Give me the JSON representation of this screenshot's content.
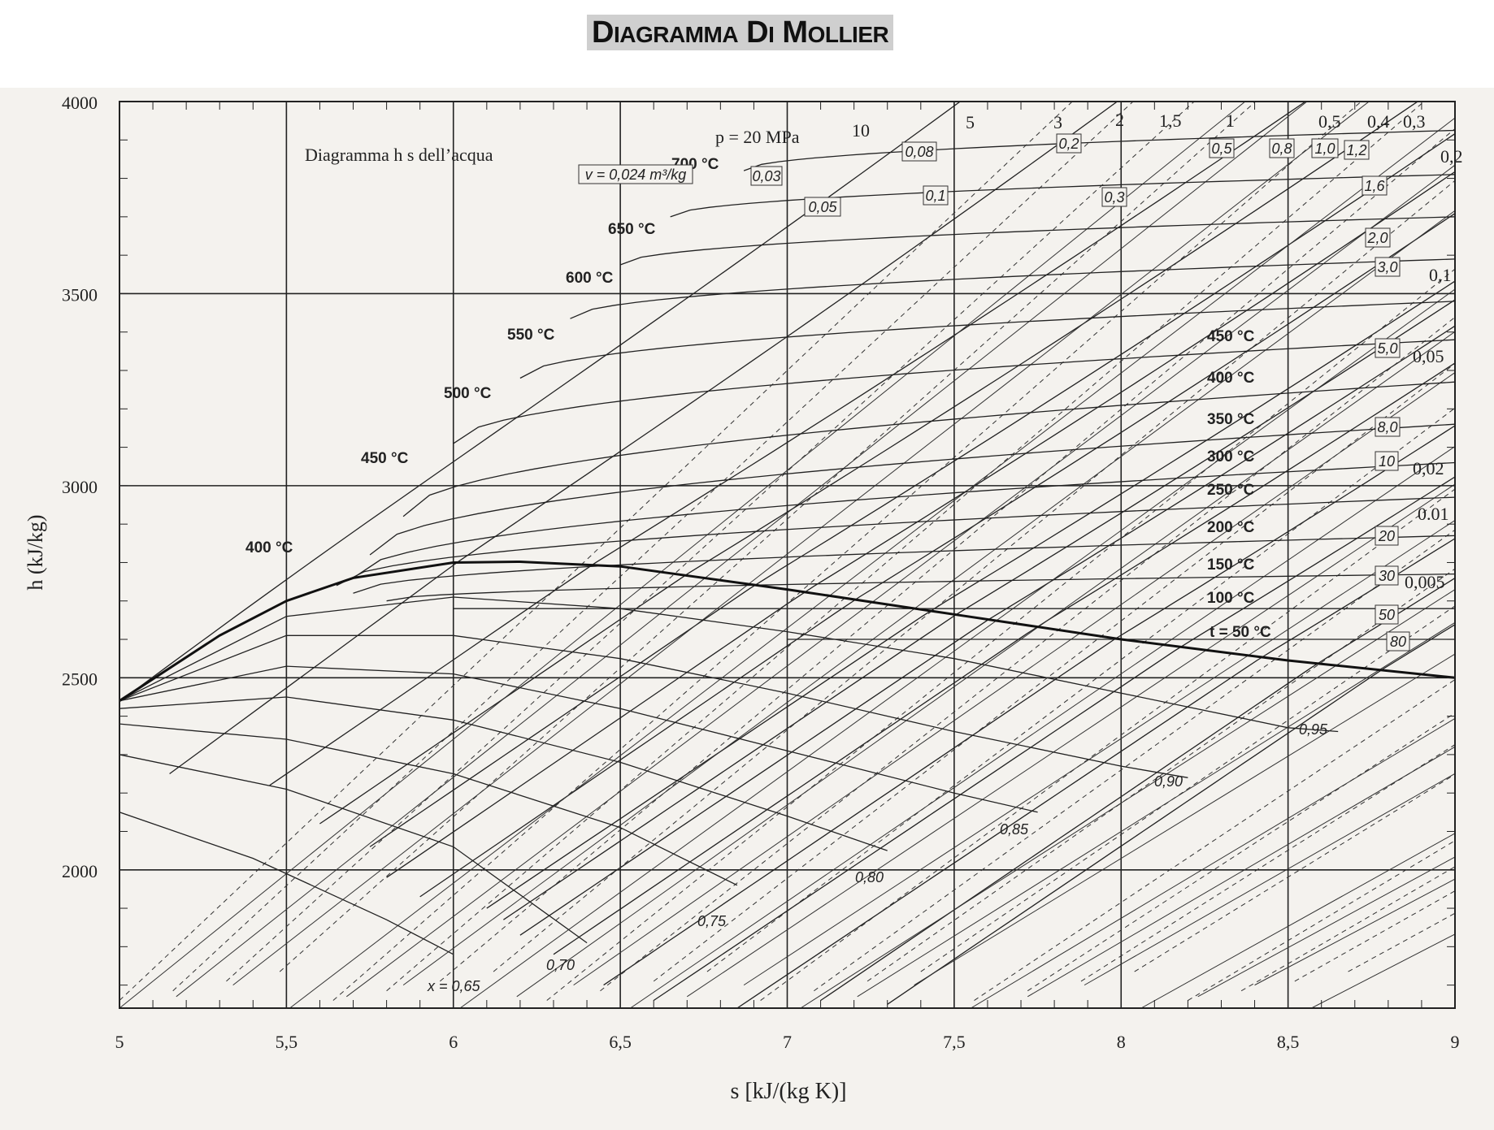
{
  "title": "DIAGRAMMA DI MOLLIER",
  "chart_data": {
    "type": "line",
    "subtitle": "Diagramma h s dell’acqua",
    "xlabel": "s  [kJ/(kg K)]",
    "ylabel": "h  (kJ/kg)",
    "xlim": [
      5,
      9
    ],
    "ylim": [
      1640,
      4000
    ],
    "x_ticks": [
      "5",
      "5,5",
      "6",
      "6,5",
      "7",
      "7,5",
      "8",
      "8,5",
      "9"
    ],
    "y_ticks": [
      "4000",
      "3500",
      "3000",
      "2500",
      "2000"
    ],
    "grid": true,
    "saturation_line": [
      [
        5.0,
        2440
      ],
      [
        5.3,
        2610
      ],
      [
        5.5,
        2700
      ],
      [
        5.7,
        2760
      ],
      [
        6.0,
        2800
      ],
      [
        6.2,
        2802
      ],
      [
        6.5,
        2790
      ],
      [
        7.0,
        2730
      ],
      [
        7.5,
        2665
      ],
      [
        8.0,
        2600
      ],
      [
        8.5,
        2545
      ],
      [
        9.0,
        2500
      ]
    ],
    "isobars": [
      {
        "label": "p = 20 MPa",
        "s": [
          5.05,
          9.0
        ],
        "h": [
          2470,
          5020
        ]
      },
      {
        "label": "10",
        "s": [
          5.15,
          9.0
        ],
        "h": [
          2250,
          4710
        ]
      },
      {
        "label": "5",
        "s": [
          5.45,
          9.0
        ],
        "h": [
          2220,
          4330
        ]
      },
      {
        "label": "3",
        "s": [
          5.6,
          9.0
        ],
        "h": [
          2120,
          4130
        ]
      },
      {
        "label": "2",
        "s": [
          5.75,
          9.0
        ],
        "h": [
          2060,
          3980
        ]
      },
      {
        "label": "1,5",
        "s": [
          5.8,
          9.0
        ],
        "h": [
          1980,
          3880
        ]
      },
      {
        "label": "1",
        "s": [
          5.9,
          9.0
        ],
        "h": [
          1930,
          3770
        ]
      },
      {
        "label": "0,5",
        "s": [
          6.1,
          9.0
        ],
        "h": [
          1900,
          3590
        ]
      },
      {
        "label": "0,4",
        "s": [
          6.15,
          9.0
        ],
        "h": [
          1870,
          3540
        ]
      },
      {
        "label": "0,3",
        "s": [
          6.2,
          9.0
        ],
        "h": [
          1830,
          3470
        ]
      },
      {
        "label": "0,2",
        "s": [
          6.3,
          9.0
        ],
        "h": [
          1780,
          3370
        ]
      },
      {
        "label": "0,1",
        "s": [
          6.45,
          9.0
        ],
        "h": [
          1700,
          3200
        ]
      },
      {
        "label": "0,05",
        "s": [
          6.6,
          9.0
        ],
        "h": [
          1660,
          3060
        ]
      },
      {
        "label": "0,02",
        "s": [
          6.85,
          9.0
        ],
        "h": [
          1640,
          2890
        ]
      },
      {
        "label": "0.01",
        "s": [
          7.1,
          9.0
        ],
        "h": [
          1660,
          2780
        ]
      },
      {
        "label": "0,005",
        "s": [
          7.3,
          9.0
        ],
        "h": [
          1650,
          2650
        ]
      }
    ],
    "isotherms": [
      {
        "label": "700 °C",
        "s": [
          6.87,
          9.0
        ],
        "h": [
          3820,
          3925
        ]
      },
      {
        "label": "650 °C",
        "s": [
          6.65,
          9.0
        ],
        "h": [
          3700,
          3810
        ]
      },
      {
        "label": "600 °C",
        "s": [
          6.5,
          9.0
        ],
        "h": [
          3575,
          3700
        ]
      },
      {
        "label": "550 °C",
        "s": [
          6.35,
          9.0
        ],
        "h": [
          3435,
          3590
        ]
      },
      {
        "label": "500 °C",
        "s": [
          6.2,
          9.0
        ],
        "h": [
          3280,
          3480
        ]
      },
      {
        "label": "450 °C",
        "s": [
          6.0,
          9.0
        ],
        "h": [
          3110,
          3380
        ]
      },
      {
        "label": "400 °C",
        "s": [
          5.85,
          9.0
        ],
        "h": [
          2920,
          3270
        ]
      },
      {
        "label": "350 °C",
        "s": [
          5.75,
          9.0
        ],
        "h": [
          2820,
          3160
        ]
      },
      {
        "label": "300 °C",
        "s": [
          5.7,
          9.0
        ],
        "h": [
          2760,
          3060
        ]
      },
      {
        "label": "250 °C",
        "s": [
          5.65,
          9.0
        ],
        "h": [
          2740,
          2970
        ]
      },
      {
        "label": "200 °C",
        "s": [
          5.7,
          9.0
        ],
        "h": [
          2720,
          2870
        ]
      },
      {
        "label": "150 °C",
        "s": [
          5.8,
          9.0
        ],
        "h": [
          2700,
          2770
        ]
      },
      {
        "label": "100 °C",
        "s": [
          6.0,
          9.0
        ],
        "h": [
          2680,
          2680
        ]
      },
      {
        "label": "t = 50 °C",
        "s": [
          7.0,
          9.0
        ],
        "h": [
          2600,
          2600
        ]
      }
    ],
    "quality_lines": [
      {
        "label": "0,95",
        "points": [
          [
            5.0,
            2440
          ],
          [
            5.5,
            2660
          ],
          [
            6.0,
            2710
          ],
          [
            6.5,
            2680
          ],
          [
            7.0,
            2620
          ],
          [
            7.5,
            2550
          ],
          [
            8.0,
            2460
          ],
          [
            8.5,
            2370
          ],
          [
            8.65,
            2360
          ]
        ]
      },
      {
        "label": "0,90",
        "points": [
          [
            5.0,
            2440
          ],
          [
            5.5,
            2610
          ],
          [
            6.0,
            2610
          ],
          [
            6.5,
            2550
          ],
          [
            7.0,
            2460
          ],
          [
            7.5,
            2360
          ],
          [
            8.0,
            2270
          ],
          [
            8.2,
            2240
          ]
        ]
      },
      {
        "label": "0,85",
        "points": [
          [
            5.0,
            2440
          ],
          [
            5.5,
            2530
          ],
          [
            6.0,
            2510
          ],
          [
            6.5,
            2420
          ],
          [
            7.0,
            2310
          ],
          [
            7.5,
            2200
          ],
          [
            7.75,
            2150
          ]
        ]
      },
      {
        "label": "0,80",
        "points": [
          [
            5.0,
            2420
          ],
          [
            5.5,
            2450
          ],
          [
            6.0,
            2390
          ],
          [
            6.5,
            2280
          ],
          [
            7.0,
            2140
          ],
          [
            7.3,
            2050
          ]
        ]
      },
      {
        "label": "0,75",
        "points": [
          [
            5.0,
            2380
          ],
          [
            5.5,
            2340
          ],
          [
            6.0,
            2250
          ],
          [
            6.5,
            2110
          ],
          [
            6.85,
            1960
          ]
        ]
      },
      {
        "label": "0,70",
        "points": [
          [
            5.0,
            2300
          ],
          [
            5.5,
            2210
          ],
          [
            6.0,
            2060
          ],
          [
            6.4,
            1810
          ]
        ]
      },
      {
        "label": "x = 0,65",
        "points": [
          [
            5.0,
            2150
          ],
          [
            5.4,
            2030
          ],
          [
            5.8,
            1870
          ],
          [
            6.0,
            1780
          ]
        ]
      }
    ],
    "specific_volume_labels": [
      "v = 0,024 m³/kg",
      "0,03",
      "0,05",
      "0,08",
      "0,1",
      "0,2",
      "0,3",
      "0,5",
      "0,8",
      "1,0",
      "1,2",
      "1,6",
      "2,0",
      "3,0",
      "5,0",
      "8,0",
      "10",
      "20",
      "30",
      "50",
      "80"
    ]
  }
}
